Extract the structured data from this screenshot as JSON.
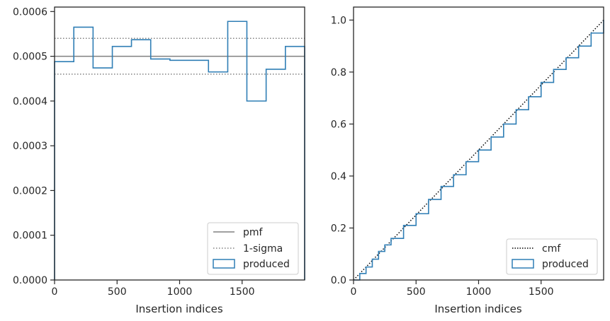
{
  "chart_data": [
    {
      "type": "step-histogram",
      "xlabel": "Insertion indices",
      "ylabel": "",
      "xlim": [
        0,
        2000
      ],
      "ylim": [
        0,
        0.00061
      ],
      "xticks": [
        0,
        500,
        1000,
        1500
      ],
      "xtick_labels": [
        "0",
        "500",
        "1000",
        "1500"
      ],
      "yticks": [
        0,
        0.0001,
        0.0002,
        0.0003,
        0.0004,
        0.0005,
        0.0006
      ],
      "ytick_labels": [
        "0.0000",
        "0.0001",
        "0.0002",
        "0.0003",
        "0.0004",
        "0.0005",
        "0.0006"
      ],
      "reference_lines": [
        {
          "name": "pmf",
          "y": 0.0005,
          "style": "solid",
          "color": "#808080"
        },
        {
          "name": "1-sigma",
          "y": 0.00054,
          "style": "dotted",
          "color": "#808080"
        },
        {
          "name": "1-sigma",
          "y": 0.00046,
          "style": "dotted",
          "color": "#808080"
        }
      ],
      "series": [
        {
          "name": "produced",
          "color": "#2f7eb5",
          "bin_edges": [
            0,
            154,
            308,
            462,
            615,
            769,
            923,
            1077,
            1231,
            1385,
            1538,
            1692,
            1846,
            2000
          ],
          "values": [
            0.000488,
            0.000565,
            0.000474,
            0.000522,
            0.000537,
            0.000494,
            0.000491,
            0.000491,
            0.000465,
            0.000578,
            0.0004,
            0.000471,
            0.000522
          ]
        }
      ],
      "legend": {
        "position": "lower-right",
        "entries": [
          "pmf",
          "1-sigma",
          "produced"
        ]
      }
    },
    {
      "type": "step-cumulative",
      "xlabel": "Insertion indices",
      "ylabel": "",
      "xlim": [
        0,
        2000
      ],
      "ylim": [
        0,
        1.05
      ],
      "xticks": [
        0,
        500,
        1000,
        1500
      ],
      "xtick_labels": [
        "0",
        "500",
        "1000",
        "1500"
      ],
      "yticks": [
        0,
        0.2,
        0.4,
        0.6,
        0.8,
        1.0
      ],
      "ytick_labels": [
        "0.0",
        "0.2",
        "0.4",
        "0.6",
        "0.8",
        "1.0"
      ],
      "reference_lines": [
        {
          "name": "cmf",
          "x": [
            0,
            2000
          ],
          "y": [
            0,
            1.0
          ],
          "style": "dotted",
          "color": "#000000"
        }
      ],
      "series": [
        {
          "name": "produced",
          "color": "#2f7eb5",
          "x": [
            0,
            50,
            100,
            150,
            200,
            250,
            300,
            400,
            500,
            600,
            700,
            800,
            900,
            1000,
            1100,
            1200,
            1300,
            1400,
            1500,
            1600,
            1700,
            1800,
            1900,
            2000
          ],
          "y": [
            0.0,
            0.025,
            0.05,
            0.08,
            0.11,
            0.135,
            0.16,
            0.21,
            0.255,
            0.31,
            0.36,
            0.405,
            0.455,
            0.5,
            0.55,
            0.6,
            0.655,
            0.705,
            0.76,
            0.81,
            0.855,
            0.9,
            0.95,
            1.0
          ]
        }
      ],
      "legend": {
        "position": "lower-right",
        "entries": [
          "cmf",
          "produced"
        ]
      }
    }
  ]
}
